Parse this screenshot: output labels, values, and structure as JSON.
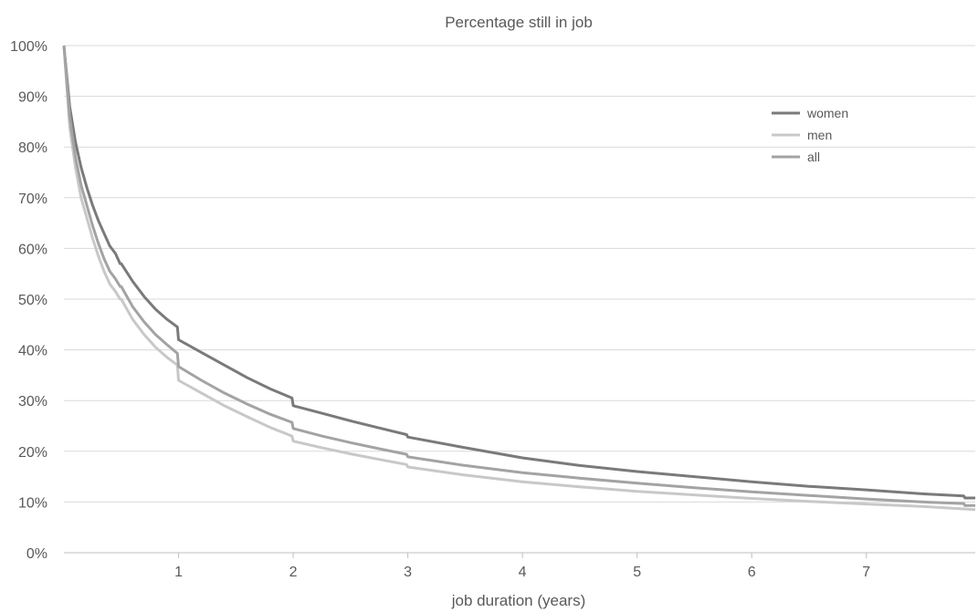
{
  "chart_data": {
    "type": "line",
    "title": "Percentage still in job",
    "xlabel": "job duration (years)",
    "ylabel": "",
    "xlim": [
      0,
      7.95
    ],
    "ylim": [
      0,
      100
    ],
    "x_ticks": [
      "1",
      "2",
      "3",
      "4",
      "5",
      "6",
      "7"
    ],
    "y_ticks": [
      "0%",
      "10%",
      "20%",
      "30%",
      "40%",
      "50%",
      "60%",
      "70%",
      "80%",
      "90%",
      "100%"
    ],
    "grid": true,
    "legend_position": "top-right",
    "series": [
      {
        "name": "women",
        "color": "#7a7a7a",
        "x": [
          0,
          0.05,
          0.1,
          0.15,
          0.2,
          0.25,
          0.3,
          0.35,
          0.4,
          0.45,
          0.49,
          0.5,
          0.6,
          0.7,
          0.8,
          0.9,
          0.99,
          1.0,
          1.2,
          1.4,
          1.6,
          1.8,
          1.99,
          2.0,
          2.25,
          2.5,
          2.75,
          2.99,
          3.0,
          3.5,
          4.0,
          4.5,
          5.0,
          5.5,
          6.0,
          6.5,
          7.0,
          7.5,
          7.85,
          7.86,
          7.95
        ],
        "y": [
          100,
          88,
          81,
          76,
          72,
          68.5,
          65.5,
          63,
          60.5,
          59,
          57,
          57,
          53.5,
          50.5,
          48,
          46,
          44.5,
          42,
          39.5,
          37,
          34.5,
          32.3,
          30.5,
          29,
          27.5,
          26,
          24.6,
          23.3,
          22.8,
          20.7,
          18.7,
          17.2,
          16,
          15,
          14,
          13.1,
          12.4,
          11.6,
          11.2,
          10.8,
          10.8
        ]
      },
      {
        "name": "men",
        "color": "#c8c8c8",
        "x": [
          0,
          0.05,
          0.1,
          0.15,
          0.2,
          0.25,
          0.3,
          0.35,
          0.4,
          0.45,
          0.49,
          0.5,
          0.6,
          0.7,
          0.8,
          0.9,
          0.99,
          1.0,
          1.2,
          1.4,
          1.6,
          1.8,
          1.99,
          2.0,
          2.25,
          2.5,
          2.75,
          2.99,
          3.0,
          3.5,
          4.0,
          4.5,
          5.0,
          5.5,
          6.0,
          6.5,
          7.0,
          7.5,
          7.95
        ],
        "y": [
          100,
          84,
          76,
          70,
          66,
          62,
          58.5,
          55.5,
          53,
          51.5,
          50,
          50,
          46,
          43,
          40.5,
          38.5,
          37,
          34,
          31.5,
          29,
          26.8,
          24.7,
          23,
          22,
          20.7,
          19.5,
          18.4,
          17.4,
          16.9,
          15.3,
          14,
          13,
          12.1,
          11.4,
          10.7,
          10.1,
          9.6,
          9.1,
          8.5
        ]
      },
      {
        "name": "all",
        "color": "#a3a3a3",
        "x": [
          0,
          0.05,
          0.1,
          0.15,
          0.2,
          0.25,
          0.3,
          0.35,
          0.4,
          0.45,
          0.49,
          0.5,
          0.6,
          0.7,
          0.8,
          0.9,
          0.99,
          1.0,
          1.2,
          1.4,
          1.6,
          1.8,
          1.99,
          2.0,
          2.25,
          2.5,
          2.75,
          2.99,
          3.0,
          3.5,
          4.0,
          4.5,
          5.0,
          5.5,
          6.0,
          6.5,
          7.0,
          7.5,
          7.85,
          7.86,
          7.95
        ],
        "y": [
          100,
          86,
          78,
          72.5,
          68.5,
          64.5,
          61,
          58,
          55.5,
          54,
          52.5,
          52.5,
          48.5,
          45.5,
          43,
          41,
          39.3,
          36.7,
          34,
          31.5,
          29.3,
          27.3,
          25.7,
          24.5,
          23,
          21.7,
          20.5,
          19.4,
          18.9,
          17.2,
          15.8,
          14.7,
          13.7,
          12.8,
          12,
          11.3,
          10.6,
          10,
          9.7,
          9.3,
          9.3
        ]
      }
    ]
  }
}
